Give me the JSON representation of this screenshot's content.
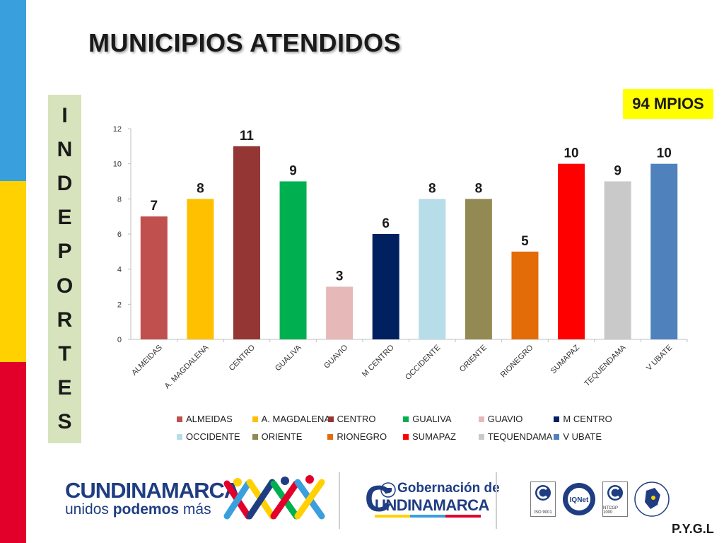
{
  "slide": {
    "title": "MUNICIPIOS ATENDIDOS",
    "vertical_label_letters": [
      "I",
      "N",
      "D",
      "E",
      "P",
      "O",
      "R",
      "T",
      "E",
      "S"
    ],
    "badge": "94 MPIOS",
    "footer_initials": "P.Y.G.L",
    "stripe_colors": [
      "#3aa0dd",
      "#ffd100",
      "#e2002b"
    ]
  },
  "logos": {
    "cundinamarca_word": "CUNDINAMARCA",
    "slogan_normal": "unidos",
    "slogan_bold": "podemos",
    "slogan_end": "más",
    "gobernacion_line1": "Gobernación de",
    "gobernacion_line2": "UNDINAMARCA",
    "gobernacion_initial": "C",
    "cert_labels": [
      "ISO 9001",
      "IQNet",
      "NTCGP 1000"
    ]
  },
  "chart_data": {
    "type": "bar",
    "title": "",
    "xlabel": "",
    "ylabel": "",
    "ylim": [
      0,
      12
    ],
    "yticks": [
      "0",
      "2",
      "4",
      "6",
      "8",
      "10",
      "12"
    ],
    "grid": false,
    "legend_position": "bottom",
    "categories": [
      "ALMEIDAS",
      "A. MAGDALENA",
      "CENTRO",
      "GUALIVA",
      "GUAVIO",
      "M CENTRO",
      "OCCIDENTE",
      "ORIENTE",
      "RIONEGRO",
      "SUMAPAZ",
      "TEQUENDAMA",
      "V UBATE"
    ],
    "values": [
      7,
      8,
      11,
      9,
      3,
      6,
      8,
      8,
      5,
      10,
      9,
      10
    ],
    "colors": [
      "#c0504d",
      "#ffc000",
      "#943634",
      "#00b050",
      "#e6b9b8",
      "#002060",
      "#b7dde8",
      "#938953",
      "#e36c09",
      "#ff0000",
      "#c9c9c9",
      "#4f81bd"
    ]
  }
}
